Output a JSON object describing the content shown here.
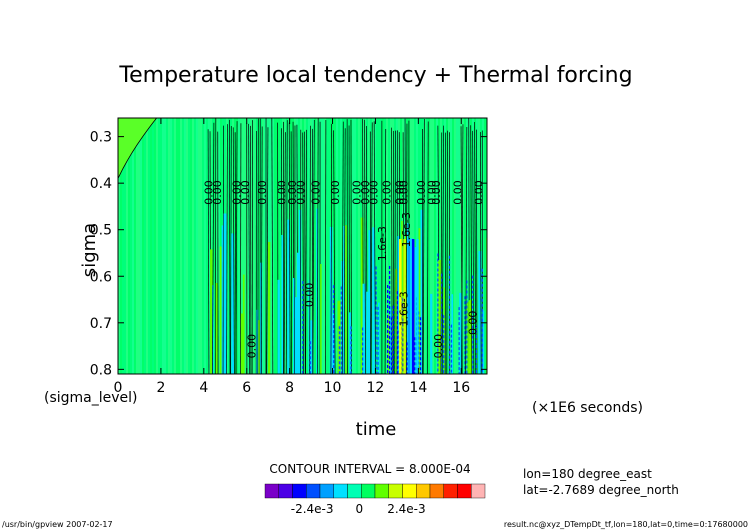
{
  "chart_data": {
    "type": "heatmap",
    "title": "Temperature local tendency + Thermal forcing",
    "xlabel": "time",
    "ylabel": "sigma",
    "x_unit_label": "(×1E6 seconds)",
    "y_sub_label": "(sigma_level)",
    "xlim": [
      0,
      17.2
    ],
    "ylim": [
      0.81,
      0.26
    ],
    "x_ticks": [
      0,
      2,
      4,
      6,
      8,
      10,
      12,
      14,
      16
    ],
    "y_ticks": [
      0.3,
      0.4,
      0.5,
      0.6,
      0.7,
      0.8
    ],
    "contour_interval_text": "CONTOUR INTERVAL = 8.000E-04",
    "info_lines": [
      "lon=180 degree_east",
      "lat=-2.7689 degree_north"
    ],
    "colorbar": {
      "colors": [
        "#7a00c8",
        "#4b00e6",
        "#0000ff",
        "#0050ff",
        "#00a0ff",
        "#00e0ff",
        "#00ffb4",
        "#00ff60",
        "#60ff00",
        "#c8ff00",
        "#ffff00",
        "#ffc800",
        "#ff7a00",
        "#ff2000",
        "#ff0000",
        "#ffb4b4"
      ],
      "tick_labels": [
        "-2.4e-3",
        "0",
        "2.4e-3"
      ],
      "tick_values": [
        -0.0024,
        0,
        0.0024
      ]
    },
    "background_value_color": "#00ff7a",
    "onset_time": 4.2,
    "contour_labels": [
      {
        "x": 4.4,
        "y": 0.42,
        "text": "0.00"
      },
      {
        "x": 4.8,
        "y": 0.42,
        "text": "0.00"
      },
      {
        "x": 5.7,
        "y": 0.42,
        "text": "0.00"
      },
      {
        "x": 6.1,
        "y": 0.42,
        "text": "0.00"
      },
      {
        "x": 6.9,
        "y": 0.42,
        "text": "0.00"
      },
      {
        "x": 7.8,
        "y": 0.42,
        "text": "0.00"
      },
      {
        "x": 8.3,
        "y": 0.42,
        "text": "0.00"
      },
      {
        "x": 8.7,
        "y": 0.42,
        "text": "0.00"
      },
      {
        "x": 9.4,
        "y": 0.42,
        "text": "0.00"
      },
      {
        "x": 10.3,
        "y": 0.42,
        "text": "0.00"
      },
      {
        "x": 11.3,
        "y": 0.42,
        "text": "0.00"
      },
      {
        "x": 11.7,
        "y": 0.42,
        "text": "0.00"
      },
      {
        "x": 12.1,
        "y": 0.42,
        "text": "0.00"
      },
      {
        "x": 12.7,
        "y": 0.42,
        "text": "0.00"
      },
      {
        "x": 13.3,
        "y": 0.42,
        "text": "0.00"
      },
      {
        "x": 13.5,
        "y": 0.42,
        "text": "0.00"
      },
      {
        "x": 14.3,
        "y": 0.42,
        "text": "0.00"
      },
      {
        "x": 14.8,
        "y": 0.42,
        "text": "0.00"
      },
      {
        "x": 15.0,
        "y": 0.42,
        "text": "0.00"
      },
      {
        "x": 16.0,
        "y": 0.42,
        "text": "0.00"
      },
      {
        "x": 17.0,
        "y": 0.42,
        "text": "0.00"
      },
      {
        "x": 12.5,
        "y": 0.53,
        "text": "1.6e-3"
      },
      {
        "x": 13.6,
        "y": 0.5,
        "text": "1.6e-3"
      },
      {
        "x": 13.5,
        "y": 0.67,
        "text": "1.6e-3"
      },
      {
        "x": 9.1,
        "y": 0.64,
        "text": "0.00"
      },
      {
        "x": 6.4,
        "y": 0.75,
        "text": "0.00"
      },
      {
        "x": 15.1,
        "y": 0.75,
        "text": "0.00"
      },
      {
        "x": 16.7,
        "y": 0.7,
        "text": "0.00"
      }
    ]
  },
  "footer": {
    "left": "/usr/bin/gpview   2007-02-17",
    "right": "result.nc@xyz_DTempDt_tf,lon=180,lat=0,time=0:17680000"
  }
}
